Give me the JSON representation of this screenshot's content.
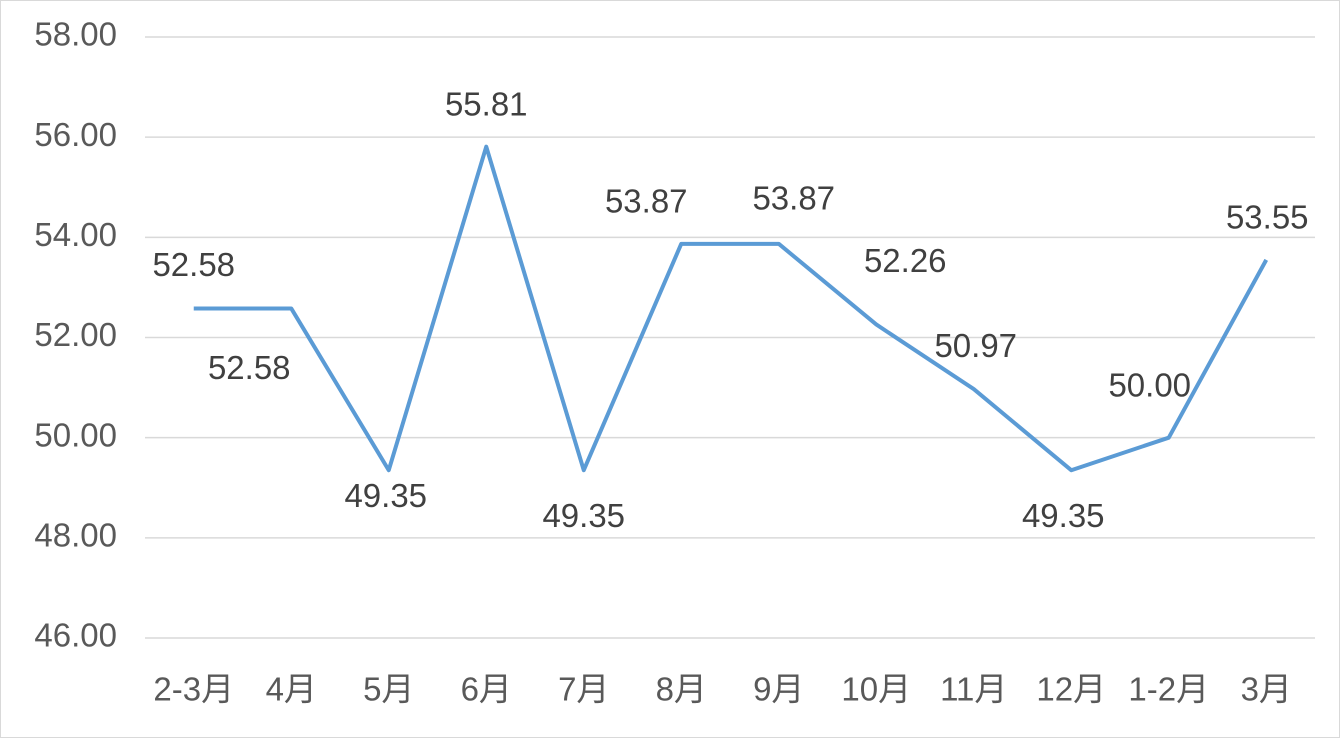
{
  "chart_data": {
    "type": "line",
    "categories": [
      "2-3月",
      "4月",
      "5月",
      "6月",
      "7月",
      "8月",
      "9月",
      "10月",
      "11月",
      "12月",
      "1-2月",
      "3月"
    ],
    "series": [
      {
        "color": "#5b9bd5",
        "values": [
          52.58,
          52.58,
          49.35,
          55.81,
          49.35,
          53.87,
          53.87,
          52.26,
          50.97,
          49.35,
          50.0,
          53.55
        ],
        "value_labels": [
          "52.58",
          "52.58",
          "49.35",
          "55.81",
          "49.35",
          "53.87",
          "53.87",
          "52.26",
          "50.97",
          "49.35",
          "50.00",
          "53.55"
        ]
      }
    ],
    "ylim": [
      46,
      58
    ],
    "yticks": [
      {
        "value": 46,
        "label": "46.00"
      },
      {
        "value": 48,
        "label": "48.00"
      },
      {
        "value": 50,
        "label": "50.00"
      },
      {
        "value": 52,
        "label": "52.00"
      },
      {
        "value": 54,
        "label": "54.00"
      },
      {
        "value": 56,
        "label": "56.00"
      },
      {
        "value": 58,
        "label": "58.00"
      }
    ],
    "grid": true
  }
}
